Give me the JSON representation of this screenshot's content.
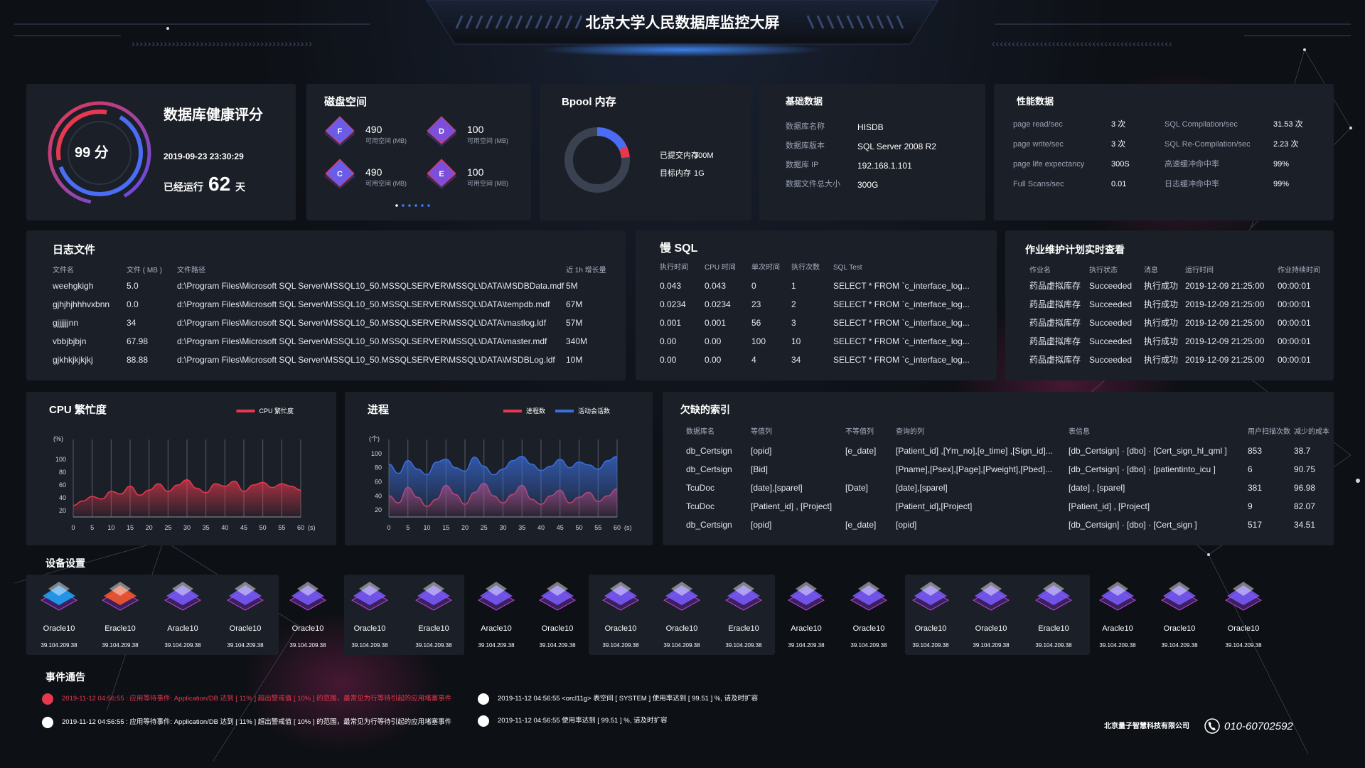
{
  "header": {
    "title": "北京大学人民数据库监控大屏"
  },
  "health": {
    "title": "数据库健康评分",
    "score": "99 分",
    "date": "2019-09-23 23:30:29",
    "run_label": "已经运行",
    "run_days": "62",
    "run_unit": "天"
  },
  "disk": {
    "title": "磁盘空间",
    "items": [
      {
        "drive": "F",
        "value": "490",
        "label": "可用空间 (MB)"
      },
      {
        "drive": "D",
        "value": "100",
        "label": "可用空间 (MB)"
      },
      {
        "drive": "C",
        "value": "490",
        "label": "可用空间 (MB)"
      },
      {
        "drive": "E",
        "value": "100",
        "label": "可用空间 (MB)"
      }
    ]
  },
  "bpool": {
    "title": "Bpool 内存",
    "rows": [
      {
        "label": "已提交内存",
        "value": "300M"
      },
      {
        "label": "目标内存",
        "value": "1G"
      }
    ]
  },
  "basic": {
    "title": "基础数据",
    "rows": [
      {
        "label": "数据库名称",
        "value": "HISDB"
      },
      {
        "label": "数据库版本",
        "value": "SQL Server 2008 R2"
      },
      {
        "label": "数据库 IP",
        "value": "192.168.1.101"
      },
      {
        "label": "数据文件总大小",
        "value": "300G"
      }
    ]
  },
  "perf": {
    "title": "性能数据",
    "rows": [
      {
        "label": "page read/sec",
        "value": "3 次",
        "label2": "SQL Compilation/sec",
        "value2": "31.53 次"
      },
      {
        "label": "page write/sec",
        "value": "3 次",
        "label2": "SQL Re-Compilation/sec",
        "value2": "2.23 次"
      },
      {
        "label": "page life expectancy",
        "value": "300S",
        "label2": "高速缓冲命中率",
        "value2": "99%"
      },
      {
        "label": "Full Scans/sec",
        "value": "0.01",
        "label2": "日志缓冲命中率",
        "value2": "99%"
      }
    ]
  },
  "log": {
    "title": "日志文件",
    "headers": [
      "文件名",
      "文件 ( MB )",
      "文件路径",
      "近 1h 增长量"
    ],
    "rows": [
      [
        "weehgkigh",
        "5.0",
        "d:\\Program Files\\Microsoft SQL Server\\MSSQL10_50.MSSQLSERVER\\MSSQL\\DATA\\MSDBData.mdf",
        "5M"
      ],
      [
        "gjhjhjhhhvxbnn",
        "0.0",
        "d:\\Program Files\\Microsoft SQL Server\\MSSQL10_50.MSSQLSERVER\\MSSQL\\DATA\\tempdb.mdf",
        "67M"
      ],
      [
        "gjjjjjjnn",
        "34",
        "d:\\Program Files\\Microsoft SQL Server\\MSSQL10_50.MSSQLSERVER\\MSSQL\\DATA\\mastlog.ldf",
        "57M"
      ],
      [
        "vbbjbjbjn",
        "67.98",
        "d:\\Program Files\\Microsoft SQL Server\\MSSQL10_50.MSSQLSERVER\\MSSQL\\DATA\\master.mdf",
        "340M"
      ],
      [
        "gjkhkjkjkjkj",
        "88.88",
        "d:\\Program Files\\Microsoft SQL Server\\MSSQL10_50.MSSQLSERVER\\MSSQL\\DATA\\MSDBLog.ldf",
        "10M"
      ]
    ]
  },
  "slow_sql": {
    "title": "慢 SQL",
    "headers": [
      "执行时间",
      "CPU 时间",
      "单次时间",
      "执行次数",
      "SQL Test"
    ],
    "rows": [
      [
        "0.043",
        "0.043",
        "0",
        "1",
        "SELECT * FROM `c_interface_log..."
      ],
      [
        "0.0234",
        "0.0234",
        "23",
        "2",
        "SELECT * FROM `c_interface_log..."
      ],
      [
        "0.001",
        "0.001",
        "56",
        "3",
        "SELECT * FROM `c_interface_log..."
      ],
      [
        "0.00",
        "0.00",
        "100",
        "10",
        "SELECT * FROM `c_interface_log..."
      ],
      [
        "0.00",
        "0.00",
        "4",
        "34",
        "SELECT * FROM `c_interface_log..."
      ]
    ]
  },
  "jobs": {
    "title": "作业维护计划实时查看",
    "headers": [
      "作业名",
      "执行状态",
      "消息",
      "运行时间",
      "作业持续时间"
    ],
    "rows": [
      [
        "药品虚拟库存",
        "Succeeded",
        "执行成功",
        "2019-12-09 21:25:00",
        "00:00:01"
      ],
      [
        "药品虚拟库存",
        "Succeeded",
        "执行成功",
        "2019-12-09 21:25:00",
        "00:00:01"
      ],
      [
        "药品虚拟库存",
        "Succeeded",
        "执行成功",
        "2019-12-09 21:25:00",
        "00:00:01"
      ],
      [
        "药品虚拟库存",
        "Succeeded",
        "执行成功",
        "2019-12-09 21:25:00",
        "00:00:01"
      ],
      [
        "药品虚拟库存",
        "Succeeded",
        "执行成功",
        "2019-12-09 21:25:00",
        "00:00:01"
      ]
    ]
  },
  "index": {
    "title": "欠缺的索引",
    "headers": [
      "数据库名",
      "等值列",
      "不等值列",
      "查询的列",
      "表信息",
      "用户扫描次数",
      "减少的成本"
    ],
    "rows": [
      [
        "db_Certsign",
        "[opid]",
        "[e_date]",
        "[Patient_id] ,[Ym_no],[e_time] ,[Sign_id]...",
        "[db_Certsign] · [dbo] · [Cert_sign_hl_qml ]",
        "853",
        "38.7"
      ],
      [
        "db_Certsign",
        "[Bid]",
        null,
        "[Pname],[Psex],[Page],[Pweight],[Pbed]...",
        "[db_Certsign] · [dbo] · [patientinto_icu ]",
        "6",
        "90.75"
      ],
      [
        "TcuDoc",
        "[date],[sparel]",
        "[Date]",
        "[date],[sparel]",
        "[date] , [sparel]",
        "381",
        "96.98"
      ],
      [
        "TcuDoc",
        "[Patient_id] , [Project]",
        null,
        "[Patient_id],[Project]",
        "[Patient_id] , [Project]",
        "9",
        "82.07"
      ],
      [
        "db_Certsign",
        "[opid]",
        "[e_date]",
        "[opid]",
        "[db_Certsign] · [dbo] · [Cert_sign ]",
        "517",
        "34.51"
      ]
    ]
  },
  "chart_data": [
    {
      "type": "line",
      "title": "CPU 繁忙度",
      "y_label": "(%)",
      "x_label": "(s)",
      "legend": "top-right",
      "grid": true,
      "x": [
        0,
        2.5,
        5,
        7.5,
        10,
        12.5,
        15,
        17.5,
        20,
        22.5,
        25,
        27.5,
        30,
        32.5,
        35,
        37.5,
        40,
        42.5,
        45,
        47.5,
        50,
        52.5,
        55,
        57.5,
        60
      ],
      "xlim": [
        0,
        60
      ],
      "xticks": [
        0,
        5,
        10,
        15,
        20,
        25,
        30,
        35,
        40,
        45,
        50,
        55,
        60
      ],
      "ylim": [
        10,
        120
      ],
      "yticks": [
        20,
        40,
        60,
        80,
        100
      ],
      "series": [
        {
          "name": "CPU 繁忙度",
          "color": "#e8384f",
          "values": [
            28,
            35,
            42,
            38,
            50,
            46,
            58,
            44,
            52,
            62,
            50,
            60,
            68,
            55,
            48,
            62,
            58,
            66,
            50,
            60,
            64,
            56,
            62,
            58,
            52
          ]
        }
      ]
    },
    {
      "type": "line",
      "title": "进程",
      "y_label": "(个)",
      "x_label": "(s)",
      "legend": "top-right",
      "grid": true,
      "x": [
        0,
        2.5,
        5,
        7.5,
        10,
        12.5,
        15,
        17.5,
        20,
        22.5,
        25,
        27.5,
        30,
        32.5,
        35,
        37.5,
        40,
        42.5,
        45,
        47.5,
        50,
        52.5,
        55,
        57.5,
        60
      ],
      "xlim": [
        0,
        60
      ],
      "xticks": [
        0,
        5,
        10,
        15,
        20,
        25,
        30,
        35,
        40,
        45,
        50,
        55,
        60
      ],
      "ylim": [
        10,
        110
      ],
      "yticks": [
        20,
        40,
        60,
        80,
        100
      ],
      "series": [
        {
          "name": "进程数",
          "color": "#e8384f",
          "values": [
            40,
            30,
            52,
            38,
            25,
            35,
            55,
            42,
            28,
            45,
            58,
            40,
            30,
            42,
            55,
            35,
            28,
            40,
            48,
            30,
            38,
            45,
            32,
            40,
            50
          ]
        },
        {
          "name": "活动会话数",
          "color": "#3b6fe0",
          "values": [
            85,
            72,
            90,
            78,
            70,
            88,
            92,
            80,
            75,
            95,
            82,
            70,
            78,
            90,
            96,
            85,
            76,
            82,
            92,
            80,
            88,
            84,
            78,
            90,
            96
          ]
        }
      ]
    }
  ],
  "devices": {
    "title": "设备设置",
    "items": [
      {
        "name": "Oracle10",
        "ip": "39.104.209.38",
        "color": "#1fa8ff"
      },
      {
        "name": "Eracle10",
        "ip": "39.104.209.38",
        "color": "#ff5a2a"
      },
      {
        "name": "Aracle10",
        "ip": "39.104.209.38",
        "color": "#7a5cff"
      },
      {
        "name": "Oracle10",
        "ip": "39.104.209.38",
        "color": "#7a5cff"
      },
      {
        "name": "Oracle10",
        "ip": "39.104.209.38",
        "color": "#7a5cff"
      },
      {
        "name": "Oracle10",
        "ip": "39.104.209.38",
        "color": "#7a5cff"
      },
      {
        "name": "Eracle10",
        "ip": "39.104.209.38",
        "color": "#7a5cff"
      },
      {
        "name": "Aracle10",
        "ip": "39.104.209.38",
        "color": "#7a5cff"
      },
      {
        "name": "Oracle10",
        "ip": "39.104.209.38",
        "color": "#7a5cff"
      },
      {
        "name": "Oracle10",
        "ip": "39.104.209.38",
        "color": "#7a5cff"
      },
      {
        "name": "Oracle10",
        "ip": "39.104.209.38",
        "color": "#7a5cff"
      },
      {
        "name": "Eracle10",
        "ip": "39.104.209.38",
        "color": "#7a5cff"
      },
      {
        "name": "Aracle10",
        "ip": "39.104.209.38",
        "color": "#7a5cff"
      },
      {
        "name": "Oracle10",
        "ip": "39.104.209.38",
        "color": "#7a5cff"
      },
      {
        "name": "Oracle10",
        "ip": "39.104.209.38",
        "color": "#7a5cff"
      },
      {
        "name": "Oracle10",
        "ip": "39.104.209.38",
        "color": "#7a5cff"
      },
      {
        "name": "Eracle10",
        "ip": "39.104.209.38",
        "color": "#7a5cff"
      },
      {
        "name": "Aracle10",
        "ip": "39.104.209.38",
        "color": "#7a5cff"
      },
      {
        "name": "Oracle10",
        "ip": "39.104.209.38",
        "color": "#7a5cff"
      },
      {
        "name": "Oracle10",
        "ip": "39.104.209.38",
        "color": "#7a5cff"
      }
    ]
  },
  "events": {
    "title": "事件通告",
    "items": [
      {
        "text": "2019-11-12 04:56:55 : 应用等待事件: Application/DB 达到 [ 11% ] 超出警戒值 [ 10% ] 的范围，最常见为行等待引起的应用堵塞事件",
        "color": "#e8384f"
      },
      {
        "text": "2019-11-12 04:56:55 : 应用等待事件: Application/DB 达到 [ 11% ] 超出警戒值 [ 10% ] 的范围，最常见为行等待引起的应用堵塞事件",
        "color": "#ffffff"
      },
      {
        "text": "2019-11-12 04:56:55 <orcl11g> 表空间 [ SYSTEM ] 使用率达到 [ 99.51 ] %, 请及时扩容",
        "color": "#ffffff"
      },
      {
        "text": "2019-11-12 04:56:55 使用率达到 [ 99.51 ] %, 请及时扩容",
        "color": "#ffffff"
      }
    ]
  },
  "footer": {
    "company": "北京量子智慧科技有限公司",
    "phone": "010-60702592"
  }
}
